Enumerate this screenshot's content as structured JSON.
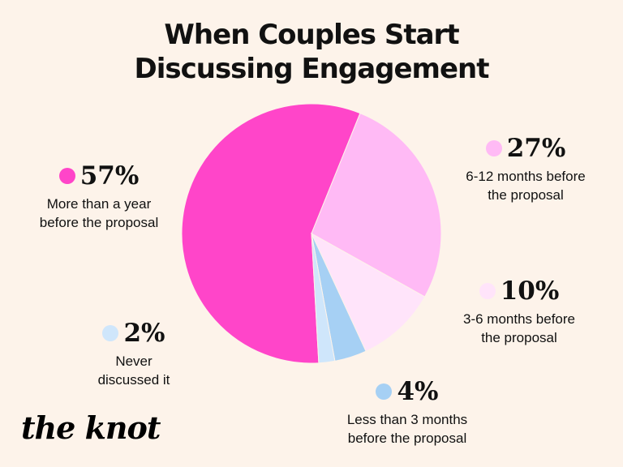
{
  "title_lines": [
    "When Couples Start",
    "Discussing Engagement"
  ],
  "brand": "the knot",
  "chart_data": {
    "type": "pie",
    "title": "When Couples Start Discussing Engagement",
    "slices": [
      {
        "pct_label": "57%",
        "value": 57,
        "label": "More than a year\nbefore the proposal",
        "color": "#ff45c9"
      },
      {
        "pct_label": "27%",
        "value": 27,
        "label": "6-12 months before\nthe proposal",
        "color": "#ffbaf5"
      },
      {
        "pct_label": "10%",
        "value": 10,
        "label": "3-6 months before\nthe proposal",
        "color": "#ffe4fa"
      },
      {
        "pct_label": "4%",
        "value": 4,
        "label": "Less than 3 months\nbefore the proposal",
        "color": "#a6d0f4"
      },
      {
        "pct_label": "2%",
        "value": 2,
        "label": "Never\ndiscussed it",
        "color": "#cfe6fb"
      }
    ]
  }
}
